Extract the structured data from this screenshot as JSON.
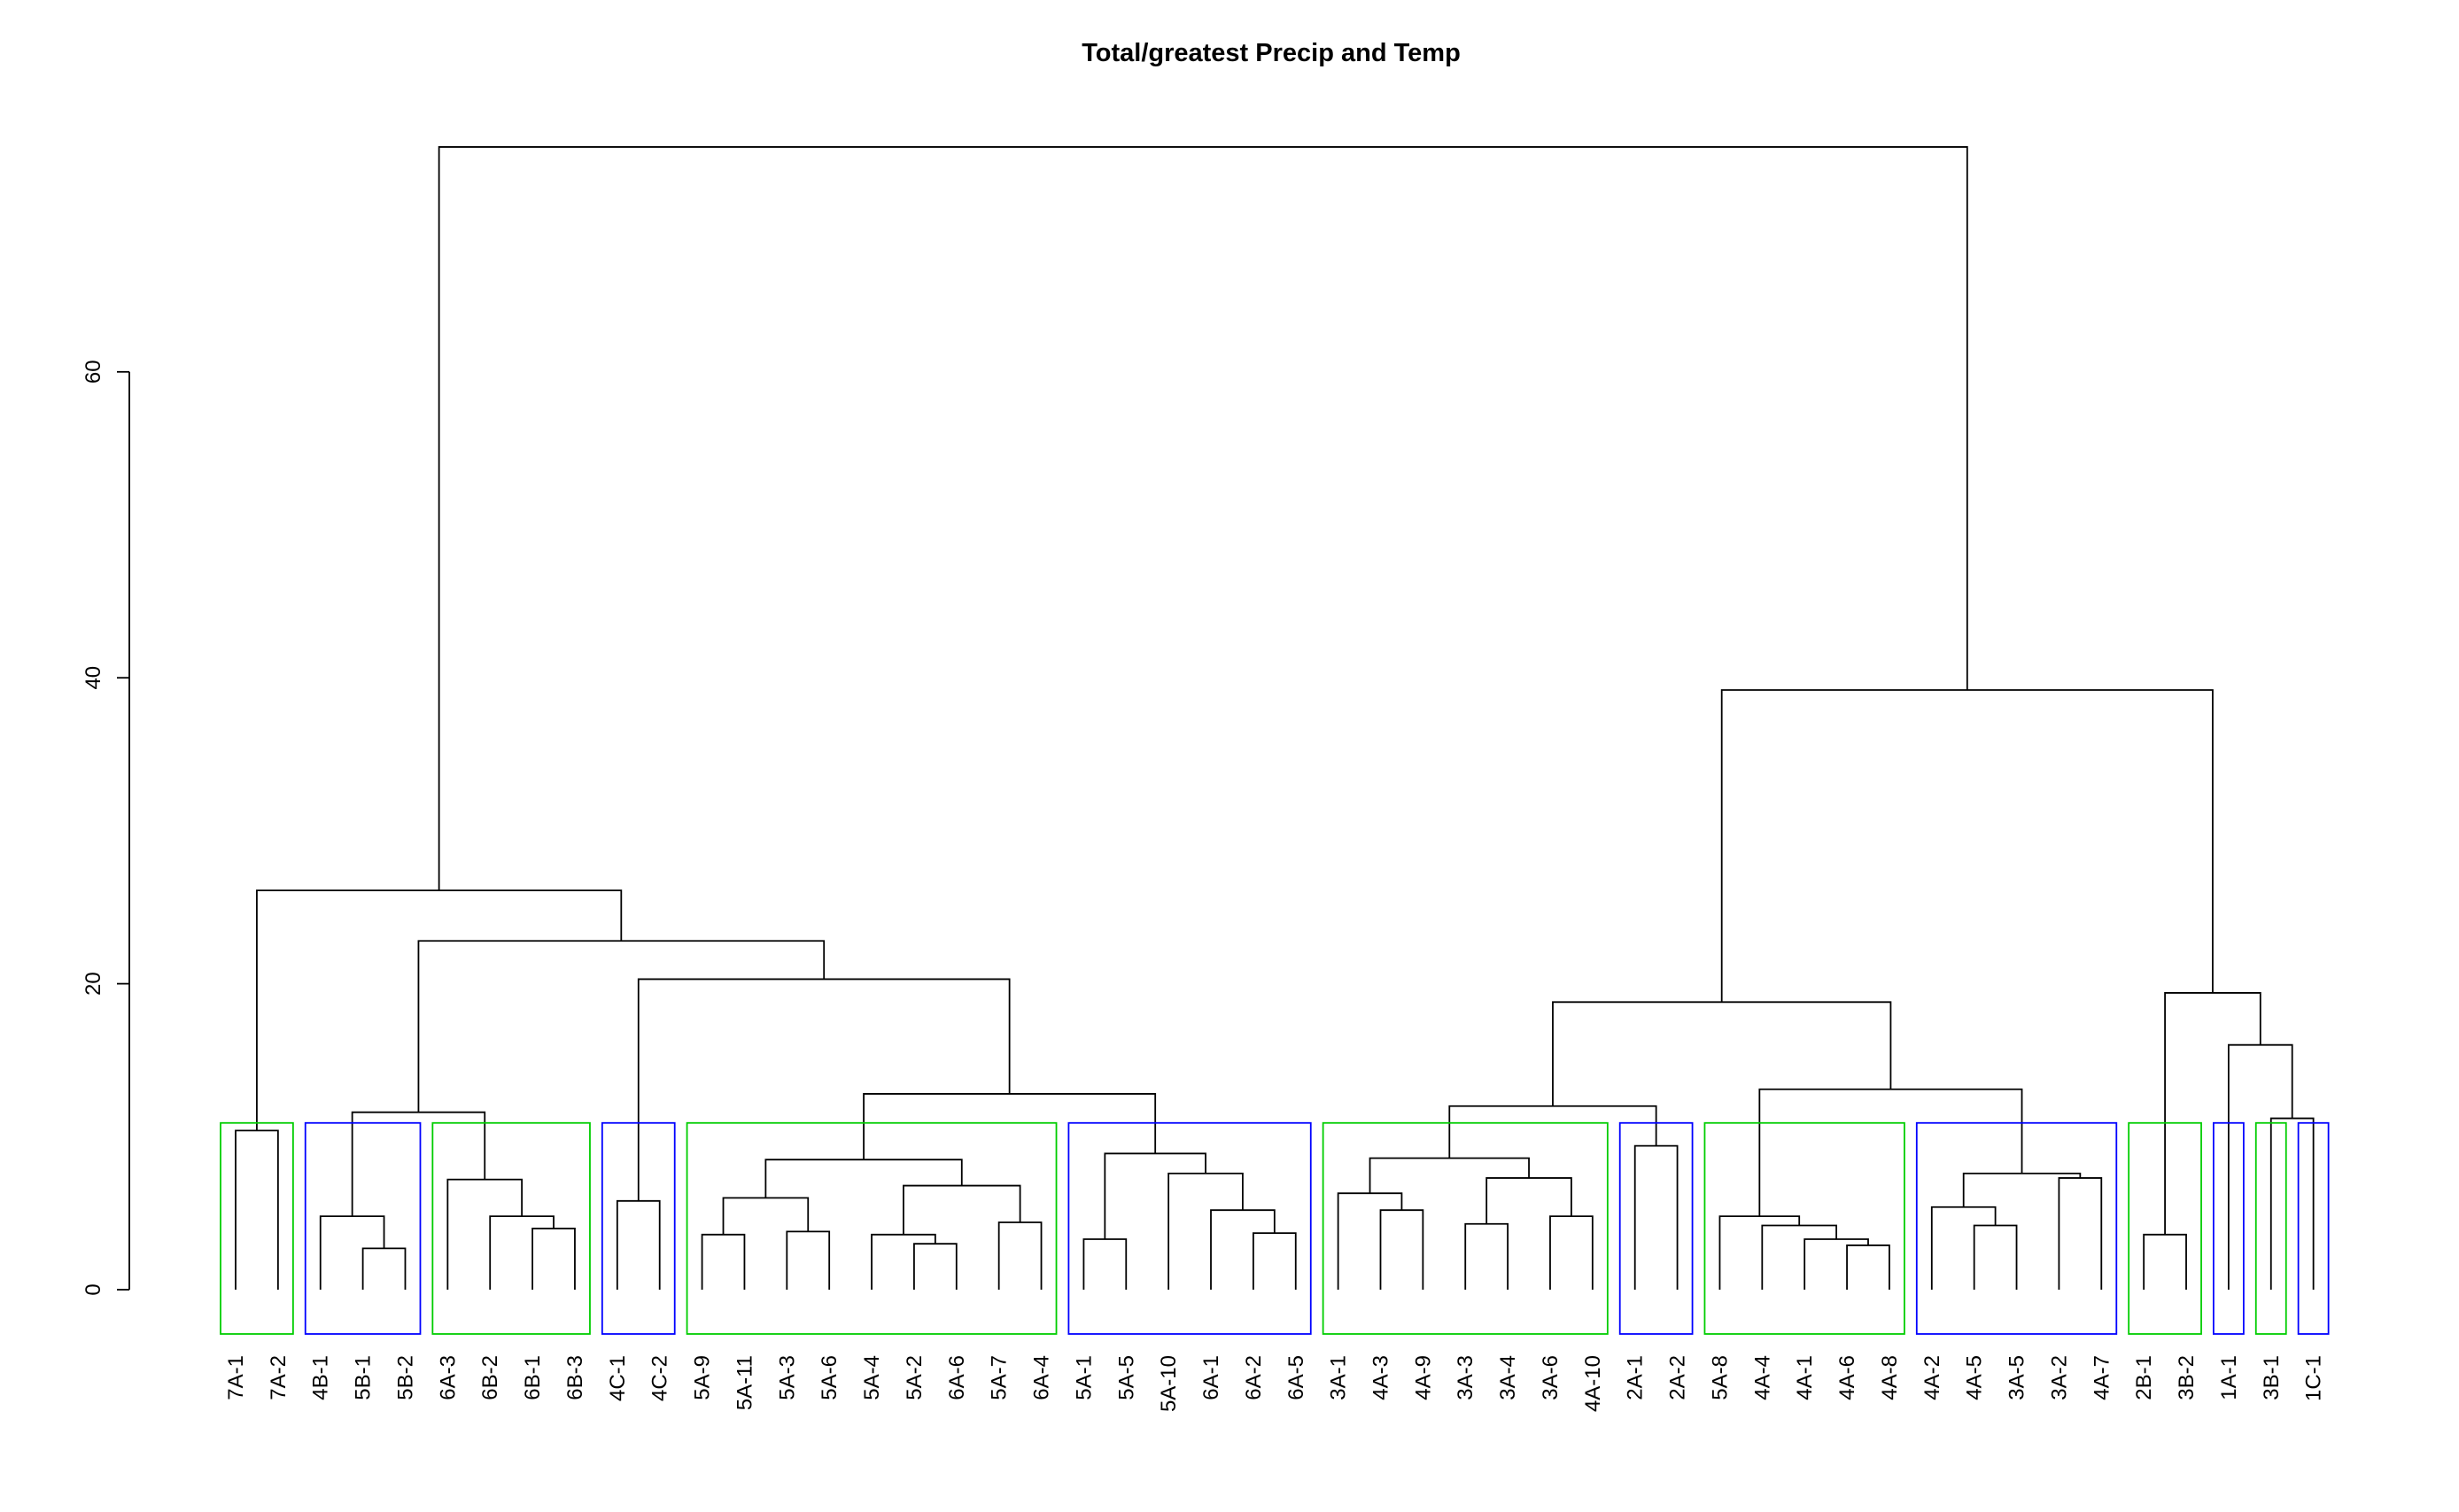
{
  "chart_data": {
    "type": "dendrogram",
    "title": "Total/greatest Precip and Temp",
    "xlabel": "",
    "ylabel": "",
    "ylim": [
      -3,
      75
    ],
    "yticks": [
      0,
      20,
      40,
      60
    ],
    "grid": false,
    "colors": {
      "link": "#000000",
      "green_box": "#00cd00",
      "blue_box": "#0000ff"
    },
    "leaves": [
      "7A-1",
      "7A-2",
      "4B-1",
      "5B-1",
      "5B-2",
      "6A-3",
      "6B-2",
      "6B-1",
      "6B-3",
      "4C-1",
      "4C-2",
      "5A-9",
      "5A-11",
      "5A-3",
      "5A-6",
      "5A-4",
      "5A-2",
      "6A-6",
      "5A-7",
      "6A-4",
      "5A-1",
      "5A-5",
      "5A-10",
      "6A-1",
      "6A-2",
      "6A-5",
      "3A-1",
      "4A-3",
      "4A-9",
      "3A-3",
      "3A-4",
      "3A-6",
      "4A-10",
      "2A-1",
      "2A-2",
      "5A-8",
      "4A-4",
      "4A-1",
      "4A-6",
      "4A-8",
      "4A-2",
      "4A-5",
      "3A-5",
      "3A-2",
      "4A-7",
      "2B-1",
      "3B-2",
      "1A-1",
      "3B-1",
      "1C-1"
    ],
    "merges": [
      {
        "id": "a1",
        "left": "7A-1",
        "right": "7A-2",
        "height": 10.4
      },
      {
        "id": "b1",
        "left": "5B-1",
        "right": "5B-2",
        "height": 2.7
      },
      {
        "id": "b2",
        "left": "4B-1",
        "right": "b1",
        "height": 4.8
      },
      {
        "id": "c1",
        "left": "6B-1",
        "right": "6B-3",
        "height": 4.0
      },
      {
        "id": "c2",
        "left": "6B-2",
        "right": "c1",
        "height": 4.8
      },
      {
        "id": "c3",
        "left": "6A-3",
        "right": "c2",
        "height": 7.2
      },
      {
        "id": "bc",
        "left": "b2",
        "right": "c3",
        "height": 11.6
      },
      {
        "id": "d1",
        "left": "4C-1",
        "right": "4C-2",
        "height": 5.8
      },
      {
        "id": "e1",
        "left": "5A-9",
        "right": "5A-11",
        "height": 3.6
      },
      {
        "id": "e2",
        "left": "5A-3",
        "right": "5A-6",
        "height": 3.8
      },
      {
        "id": "e3",
        "left": "e1",
        "right": "e2",
        "height": 6.0
      },
      {
        "id": "e4",
        "left": "5A-2",
        "right": "6A-6",
        "height": 3.0
      },
      {
        "id": "e5",
        "left": "5A-4",
        "right": "e4",
        "height": 3.6
      },
      {
        "id": "e6",
        "left": "5A-7",
        "right": "6A-4",
        "height": 4.4
      },
      {
        "id": "e7",
        "left": "e5",
        "right": "e6",
        "height": 6.8
      },
      {
        "id": "e8",
        "left": "e3",
        "right": "e7",
        "height": 8.5
      },
      {
        "id": "f1",
        "left": "5A-1",
        "right": "5A-5",
        "height": 3.3
      },
      {
        "id": "f2",
        "left": "6A-2",
        "right": "6A-5",
        "height": 3.7
      },
      {
        "id": "f3",
        "left": "6A-1",
        "right": "f2",
        "height": 5.2
      },
      {
        "id": "f4",
        "left": "5A-10",
        "right": "f3",
        "height": 7.6
      },
      {
        "id": "f5",
        "left": "f1",
        "right": "f4",
        "height": 8.9
      },
      {
        "id": "ef",
        "left": "e8",
        "right": "f5",
        "height": 12.8
      },
      {
        "id": "def",
        "left": "d1",
        "right": "ef",
        "height": 20.3
      },
      {
        "id": "bcdef",
        "left": "bc",
        "right": "def",
        "height": 22.8
      },
      {
        "id": "L",
        "left": "a1",
        "right": "bcdef",
        "height": 26.1
      },
      {
        "id": "g1",
        "left": "4A-3",
        "right": "4A-9",
        "height": 5.2
      },
      {
        "id": "g2",
        "left": "3A-1",
        "right": "g1",
        "height": 6.3
      },
      {
        "id": "g3",
        "left": "3A-6",
        "right": "4A-10",
        "height": 4.8
      },
      {
        "id": "g4",
        "left": "3A-3",
        "right": "3A-4",
        "height": 4.3
      },
      {
        "id": "g5",
        "left": "g4",
        "right": "g3",
        "height": 7.3
      },
      {
        "id": "g6",
        "left": "g2",
        "right": "g5",
        "height": 8.6
      },
      {
        "id": "h1",
        "left": "2A-1",
        "right": "2A-2",
        "height": 9.4
      },
      {
        "id": "gh",
        "left": "g6",
        "right": "h1",
        "height": 12.0
      },
      {
        "id": "i1",
        "left": "4A-6",
        "right": "4A-8",
        "height": 2.9
      },
      {
        "id": "i2",
        "left": "4A-1",
        "right": "i1",
        "height": 3.3
      },
      {
        "id": "i3",
        "left": "4A-4",
        "right": "i2",
        "height": 4.2
      },
      {
        "id": "i4",
        "left": "5A-8",
        "right": "i3",
        "height": 4.8
      },
      {
        "id": "j1",
        "left": "4A-5",
        "right": "3A-5",
        "height": 4.2
      },
      {
        "id": "j2",
        "left": "4A-2",
        "right": "j1",
        "height": 5.4
      },
      {
        "id": "j3",
        "left": "3A-2",
        "right": "4A-7",
        "height": 7.3
      },
      {
        "id": "j4",
        "left": "j2",
        "right": "j3",
        "height": 7.6
      },
      {
        "id": "ij",
        "left": "i4",
        "right": "j4",
        "height": 13.1
      },
      {
        "id": "ghij",
        "left": "gh",
        "right": "ij",
        "height": 18.8
      },
      {
        "id": "k1",
        "left": "2B-1",
        "right": "3B-2",
        "height": 3.6
      },
      {
        "id": "m1",
        "left": "3B-1",
        "right": "1C-1",
        "height": 11.2
      },
      {
        "id": "m2",
        "left": "1A-1",
        "right": "m1",
        "height": 16.0
      },
      {
        "id": "km",
        "left": "k1",
        "right": "m2",
        "height": 19.4
      },
      {
        "id": "R",
        "left": "ghij",
        "right": "km",
        "height": 39.2
      },
      {
        "id": "root",
        "left": "L",
        "right": "R",
        "height": 74.7
      }
    ],
    "clusters": [
      {
        "from": "7A-1",
        "to": "7A-2",
        "color": "green"
      },
      {
        "from": "4B-1",
        "to": "5B-2",
        "color": "blue"
      },
      {
        "from": "6A-3",
        "to": "6B-3",
        "color": "green"
      },
      {
        "from": "4C-1",
        "to": "4C-2",
        "color": "blue"
      },
      {
        "from": "5A-9",
        "to": "6A-4",
        "color": "green"
      },
      {
        "from": "5A-1",
        "to": "6A-5",
        "color": "blue"
      },
      {
        "from": "3A-1",
        "to": "4A-10",
        "color": "green"
      },
      {
        "from": "2A-1",
        "to": "2A-2",
        "color": "blue"
      },
      {
        "from": "5A-8",
        "to": "4A-8",
        "color": "green"
      },
      {
        "from": "4A-2",
        "to": "4A-7",
        "color": "blue"
      },
      {
        "from": "2B-1",
        "to": "3B-2",
        "color": "green"
      },
      {
        "from": "1A-1",
        "to": "1A-1",
        "color": "blue"
      },
      {
        "from": "3B-1",
        "to": "3B-1",
        "color": "green"
      },
      {
        "from": "1C-1",
        "to": "1C-1",
        "color": "blue"
      }
    ],
    "cluster_box_top": 10.9
  }
}
